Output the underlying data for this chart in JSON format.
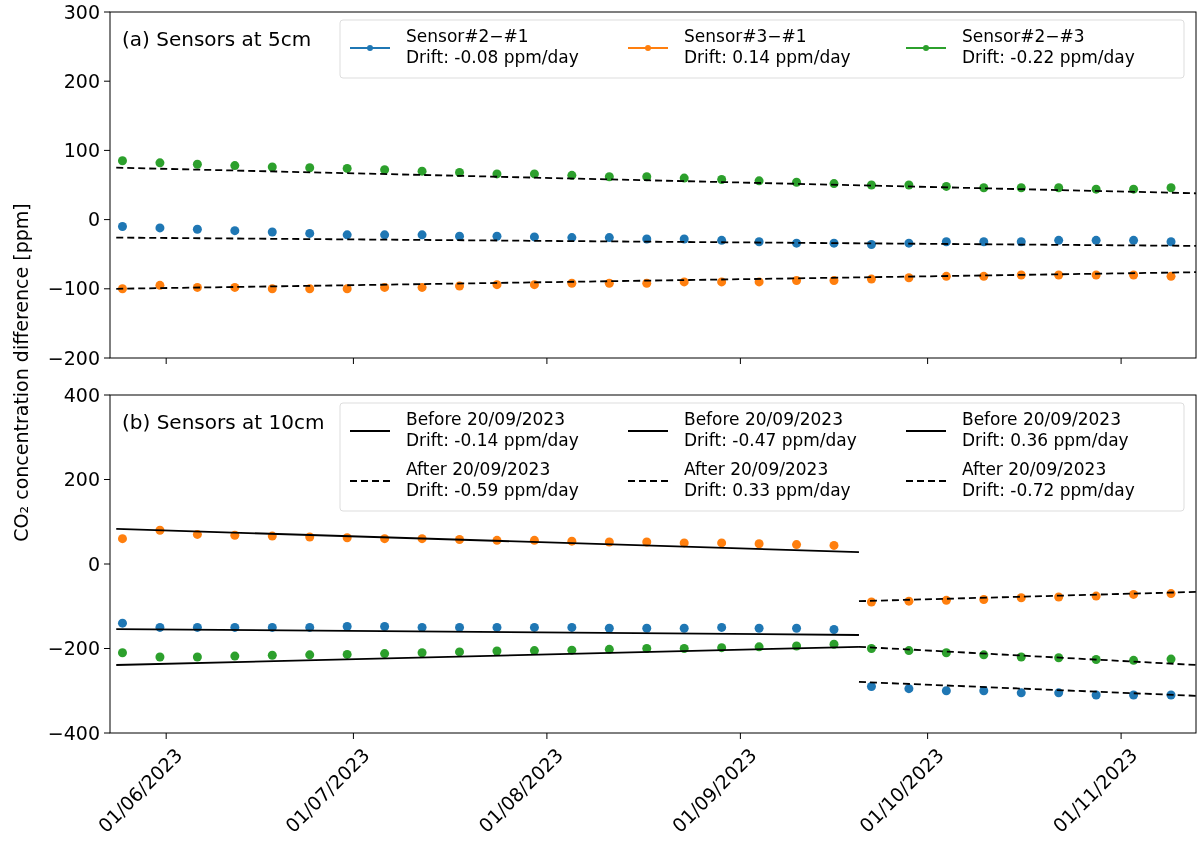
{
  "chart_data": [
    {
      "type": "scatter",
      "title": "(a) Sensors at 5cm",
      "ylabel": "CO₂ concentration difference [ppm]",
      "xlim": [
        "2023-05-23",
        "2023-11-13"
      ],
      "xticks": [
        {
          "value": "2023-06-01",
          "label": null
        },
        {
          "value": "2023-07-01",
          "label": null
        },
        {
          "value": "2023-08-01",
          "label": null
        },
        {
          "value": "2023-09-01",
          "label": null
        },
        {
          "value": "2023-10-01",
          "label": null
        },
        {
          "value": "2023-11-01",
          "label": null
        }
      ],
      "ylim": [
        -200,
        300
      ],
      "yticks": [
        -200,
        -100,
        0,
        100,
        200,
        300
      ],
      "tick_labels": "y",
      "legend": "top right",
      "grid": false,
      "x": [
        "2023-05-25",
        "2023-05-31",
        "2023-06-06",
        "2023-06-12",
        "2023-06-18",
        "2023-06-24",
        "2023-06-30",
        "2023-07-06",
        "2023-07-12",
        "2023-07-18",
        "2023-07-24",
        "2023-07-30",
        "2023-08-05",
        "2023-08-11",
        "2023-08-17",
        "2023-08-23",
        "2023-08-29",
        "2023-09-04",
        "2023-09-10",
        "2023-09-16",
        "2023-09-22",
        "2023-09-28",
        "2023-10-04",
        "2023-10-10",
        "2023-10-16",
        "2023-10-22",
        "2023-10-28",
        "2023-11-03",
        "2023-11-09"
      ],
      "series": [
        {
          "name": "Sensor#2−#1\nDrift: -0.08 ppm/day",
          "color": "#1f77b4",
          "marker": "circle",
          "values": [
            -10,
            -12,
            -14,
            -16,
            -18,
            -20,
            -22,
            -22,
            -22,
            -24,
            -24,
            -25,
            -26,
            -26,
            -28,
            -28,
            -30,
            -32,
            -34,
            -34,
            -36,
            -34,
            -32,
            -32,
            -32,
            -30,
            -30,
            -30,
            -32
          ]
        },
        {
          "name": "Sensor#3−#1\nDrift: 0.14 ppm/day",
          "color": "#ff7f0e",
          "marker": "circle",
          "values": [
            -100,
            -95,
            -98,
            -98,
            -100,
            -100,
            -100,
            -98,
            -98,
            -96,
            -94,
            -94,
            -92,
            -92,
            -92,
            -90,
            -90,
            -90,
            -88,
            -88,
            -86,
            -84,
            -82,
            -82,
            -80,
            -80,
            -80,
            -80,
            -82
          ]
        },
        {
          "name": "Sensor#2−#3\nDrift: -0.22 ppm/day",
          "color": "#2ca02c",
          "marker": "circle",
          "values": [
            85,
            82,
            80,
            78,
            76,
            75,
            74,
            72,
            70,
            68,
            66,
            66,
            64,
            62,
            62,
            60,
            58,
            56,
            54,
            52,
            50,
            50,
            48,
            46,
            46,
            46,
            44,
            44,
            46
          ]
        },
        {
          "type": "line",
          "color": "#000000",
          "line_style": "dashed",
          "x": [
            "2023-05-24",
            "2023-11-13"
          ],
          "values": [
            -26,
            -38
          ]
        },
        {
          "type": "line",
          "color": "#000000",
          "line_style": "dashed",
          "x": [
            "2023-05-24",
            "2023-11-13"
          ],
          "values": [
            -100,
            -76
          ]
        },
        {
          "type": "line",
          "color": "#000000",
          "line_style": "dashed",
          "x": [
            "2023-05-24",
            "2023-11-13"
          ],
          "values": [
            75,
            38
          ]
        }
      ]
    },
    {
      "type": "scatter",
      "title": "(b) Sensors at 10cm",
      "xlim": [
        "2023-05-23",
        "2023-11-13"
      ],
      "xticks": [
        {
          "value": "2023-06-01",
          "label": "01/06/2023"
        },
        {
          "value": "2023-07-01",
          "label": "01/07/2023"
        },
        {
          "value": "2023-08-01",
          "label": "01/08/2023"
        },
        {
          "value": "2023-09-01",
          "label": "01/09/2023"
        },
        {
          "value": "2023-10-01",
          "label": "01/10/2023"
        },
        {
          "value": "2023-11-01",
          "label": "01/11/2023"
        }
      ],
      "ylim": [
        -400,
        400
      ],
      "yticks": [
        -400,
        -200,
        0,
        200,
        400
      ],
      "legend": "top right",
      "grid": false,
      "x": [
        "2023-05-25",
        "2023-05-31",
        "2023-06-06",
        "2023-06-12",
        "2023-06-18",
        "2023-06-24",
        "2023-06-30",
        "2023-07-06",
        "2023-07-12",
        "2023-07-18",
        "2023-07-24",
        "2023-07-30",
        "2023-08-05",
        "2023-08-11",
        "2023-08-17",
        "2023-08-23",
        "2023-08-29",
        "2023-09-04",
        "2023-09-10",
        "2023-09-16",
        "2023-09-22",
        "2023-09-28",
        "2023-10-04",
        "2023-10-10",
        "2023-10-16",
        "2023-10-22",
        "2023-10-28",
        "2023-11-03",
        "2023-11-09"
      ],
      "series": [
        {
          "color": "#1f77b4",
          "marker": "circle",
          "values": [
            -140,
            -150,
            -150,
            -150,
            -150,
            -150,
            -148,
            -148,
            -150,
            -150,
            -150,
            -150,
            -150,
            -152,
            -152,
            -152,
            -150,
            -152,
            -152,
            -155,
            -290,
            -295,
            -300,
            -300,
            -305,
            -305,
            -310,
            -310,
            -310
          ]
        },
        {
          "color": "#ff7f0e",
          "marker": "circle",
          "values": [
            60,
            80,
            70,
            68,
            66,
            64,
            62,
            60,
            60,
            58,
            56,
            56,
            54,
            52,
            52,
            50,
            50,
            48,
            46,
            44,
            -90,
            -88,
            -86,
            -84,
            -80,
            -78,
            -76,
            -72,
            -70
          ]
        },
        {
          "color": "#2ca02c",
          "marker": "circle",
          "values": [
            -210,
            -220,
            -220,
            -218,
            -216,
            -215,
            -214,
            -212,
            -210,
            -208,
            -206,
            -205,
            -204,
            -202,
            -200,
            -200,
            -198,
            -196,
            -194,
            -190,
            -200,
            -205,
            -210,
            -215,
            -220,
            -222,
            -226,
            -228,
            -225
          ]
        },
        {
          "type": "line",
          "name": "Before 20/09/2023\nDrift: -0.14 ppm/day",
          "color": "#000000",
          "line_style": "solid",
          "x": [
            "2023-05-24",
            "2023-09-20"
          ],
          "values": [
            -154,
            -168
          ]
        },
        {
          "type": "line",
          "name": "After 20/09/2023\nDrift: -0.59 ppm/day",
          "color": "#000000",
          "line_style": "dashed",
          "x": [
            "2023-09-20",
            "2023-11-13"
          ],
          "values": [
            -279,
            -312
          ]
        },
        {
          "type": "line",
          "name": "Before 20/09/2023\nDrift: -0.47 ppm/day",
          "color": "#000000",
          "line_style": "solid",
          "x": [
            "2023-05-24",
            "2023-09-20"
          ],
          "values": [
            83,
            28
          ]
        },
        {
          "type": "line",
          "name": "After 20/09/2023\nDrift: 0.33 ppm/day",
          "color": "#000000",
          "line_style": "dashed",
          "x": [
            "2023-09-20",
            "2023-11-13"
          ],
          "values": [
            -88,
            -66
          ]
        },
        {
          "type": "line",
          "name": "Before 20/09/2023\nDrift: 0.36 ppm/day",
          "color": "#000000",
          "line_style": "solid",
          "x": [
            "2023-05-24",
            "2023-09-20"
          ],
          "values": [
            -239,
            -196
          ]
        },
        {
          "type": "line",
          "name": "After 20/09/2023\nDrift: -0.72 ppm/day",
          "color": "#000000",
          "line_style": "dashed",
          "x": [
            "2023-09-20",
            "2023-11-13"
          ],
          "values": [
            -196,
            -239
          ]
        }
      ]
    }
  ]
}
